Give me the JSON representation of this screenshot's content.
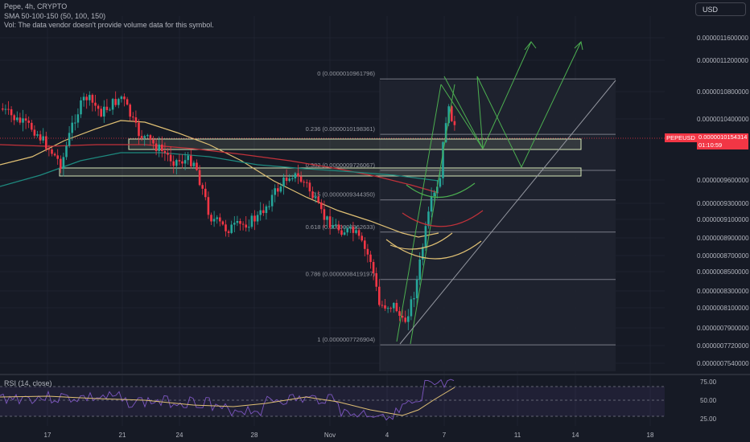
{
  "legend": {
    "title": "Pepe, 4h, CRYPTO",
    "sma": "SMA 50-100-150 (50, 100, 150)",
    "vol": "Vol: The data vendor doesn't provide volume data for this symbol."
  },
  "currency_button": "USD",
  "price_tag": {
    "symbol": "PEPEUSD",
    "price": "0.0000010154314",
    "countdown": "01:10:59"
  },
  "rsi": {
    "label": "RSI (14, close)",
    "ticks": [
      "75.00",
      "50.00",
      "25.00"
    ]
  },
  "colors": {
    "up": "#26a69a",
    "down": "#f23645",
    "sma50": "#e0c074",
    "sma100": "#c2323a",
    "sma150": "#1e8a7f",
    "rsi": "#7e57c2",
    "rsi_ma": "#e0c074",
    "arrows": "#4caf50",
    "zone": "#d6e6b8",
    "fib": "#787b86"
  },
  "chart_data": {
    "type": "candlestick",
    "x_ticks": [
      "17",
      "21",
      "24",
      "28",
      "Nov",
      "4",
      "7",
      "11",
      "14",
      "18"
    ],
    "y_ticks": [
      "0.0000011600000",
      "0.0000011200000",
      "0.0000010800000",
      "0.0000010400000",
      "0.0000009600000",
      "0.0000009300000",
      "0.0000009100000",
      "0.0000008900000",
      "0.0000008700000",
      "0.0000008500000",
      "0.0000008300000",
      "0.0000008100000",
      "0.0000007900000",
      "0.0000007720000",
      "0.0000007540000"
    ],
    "fib_levels": [
      {
        "label": "0 (0.000001096179‍6)",
        "value": 1.0961796e-06
      },
      {
        "label": "0.236 (0.0000010198361)",
        "value": 1.0198361e-06
      },
      {
        "label": "0.382 (0.0000009726067)",
        "value": 9.726067e-07
      },
      {
        "label": "0.5 (0.0000009344350)",
        "value": 9.34435e-07
      },
      {
        "label": "0.618 (0.0000008962633)",
        "value": 8.962633e-07
      },
      {
        "label": "0.786 (0.0000008419197)",
        "value": 8.419197e-07
      },
      {
        "label": "1 (0.0000007726904)",
        "value": 7.726904e-07
      }
    ],
    "last_price": 1.0154314e-06
  }
}
